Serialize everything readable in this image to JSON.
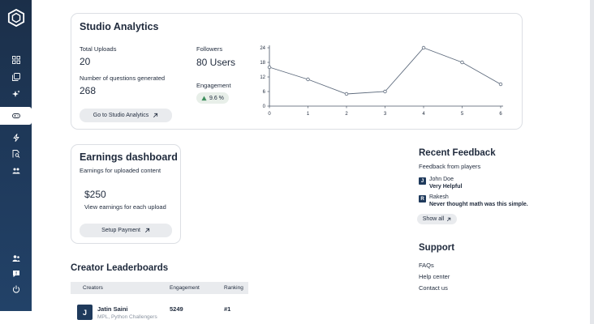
{
  "nav": {
    "items": [
      {
        "icon": "grid-icon"
      },
      {
        "icon": "copy-icon"
      },
      {
        "icon": "sparkle-icon"
      },
      {
        "icon": "gamepad-icon",
        "active": true
      },
      {
        "icon": "bolt-icon"
      },
      {
        "icon": "search-file-icon"
      },
      {
        "icon": "group-icon"
      }
    ],
    "bottom_items": [
      {
        "icon": "users-icon"
      },
      {
        "icon": "feedback-icon"
      },
      {
        "icon": "power-icon"
      }
    ]
  },
  "analytics": {
    "title": "Studio Analytics",
    "uploads_label": "Total Uploads",
    "uploads_value": "20",
    "questions_label": "Number of questions generated",
    "questions_value": "268",
    "followers_label": "Followers",
    "followers_value": "80 Users",
    "engagement_label": "Engagement",
    "engagement_value": "9.6 %",
    "button_label": "Go to Studio Analytics"
  },
  "chart_data": {
    "type": "line",
    "x": [
      0,
      1,
      2,
      3,
      4,
      5,
      6
    ],
    "y": [
      16,
      11,
      5,
      6,
      24,
      18,
      9
    ],
    "xticks": [
      "0",
      "1",
      "2",
      "3",
      "4",
      "5",
      "6"
    ],
    "yticks": [
      "0",
      "6",
      "12",
      "18",
      "24"
    ],
    "xlim": [
      0,
      6
    ],
    "ylim": [
      0,
      24
    ],
    "grid": false,
    "color": "#5d6a7c"
  },
  "earnings": {
    "title": "Earnings dashboard",
    "subtitle": "Earnings for uploaded content",
    "amount": "$250",
    "note": "View earnings for each upload",
    "button_label": "Setup Payment"
  },
  "feedback": {
    "title": "Recent Feedback",
    "subtitle": "Feedback from players",
    "items": [
      {
        "initial": "J",
        "name": "John Doe",
        "message": "Very Helpful"
      },
      {
        "initial": "R",
        "name": "Rakesh",
        "message": "Never thought math was this simple."
      }
    ],
    "show_all_label": "Show all"
  },
  "support": {
    "title": "Support",
    "links": [
      "FAQs",
      "Help center",
      "Contact us"
    ]
  },
  "leaderboard": {
    "title": "Creator Leaderboards",
    "columns": [
      "Creators",
      "Engagement",
      "Ranking"
    ],
    "rows": [
      {
        "initial": "J",
        "name": "Jatin Saini",
        "tags": "MPL, Python Challengers",
        "engagement": "5249",
        "ranking": "#1"
      }
    ]
  },
  "colors": {
    "sidebar": "#1f3a5c",
    "button_bg": "#e9ebee",
    "badge_bg": "#e8efe9",
    "accent_up": "#3f8f5e"
  }
}
